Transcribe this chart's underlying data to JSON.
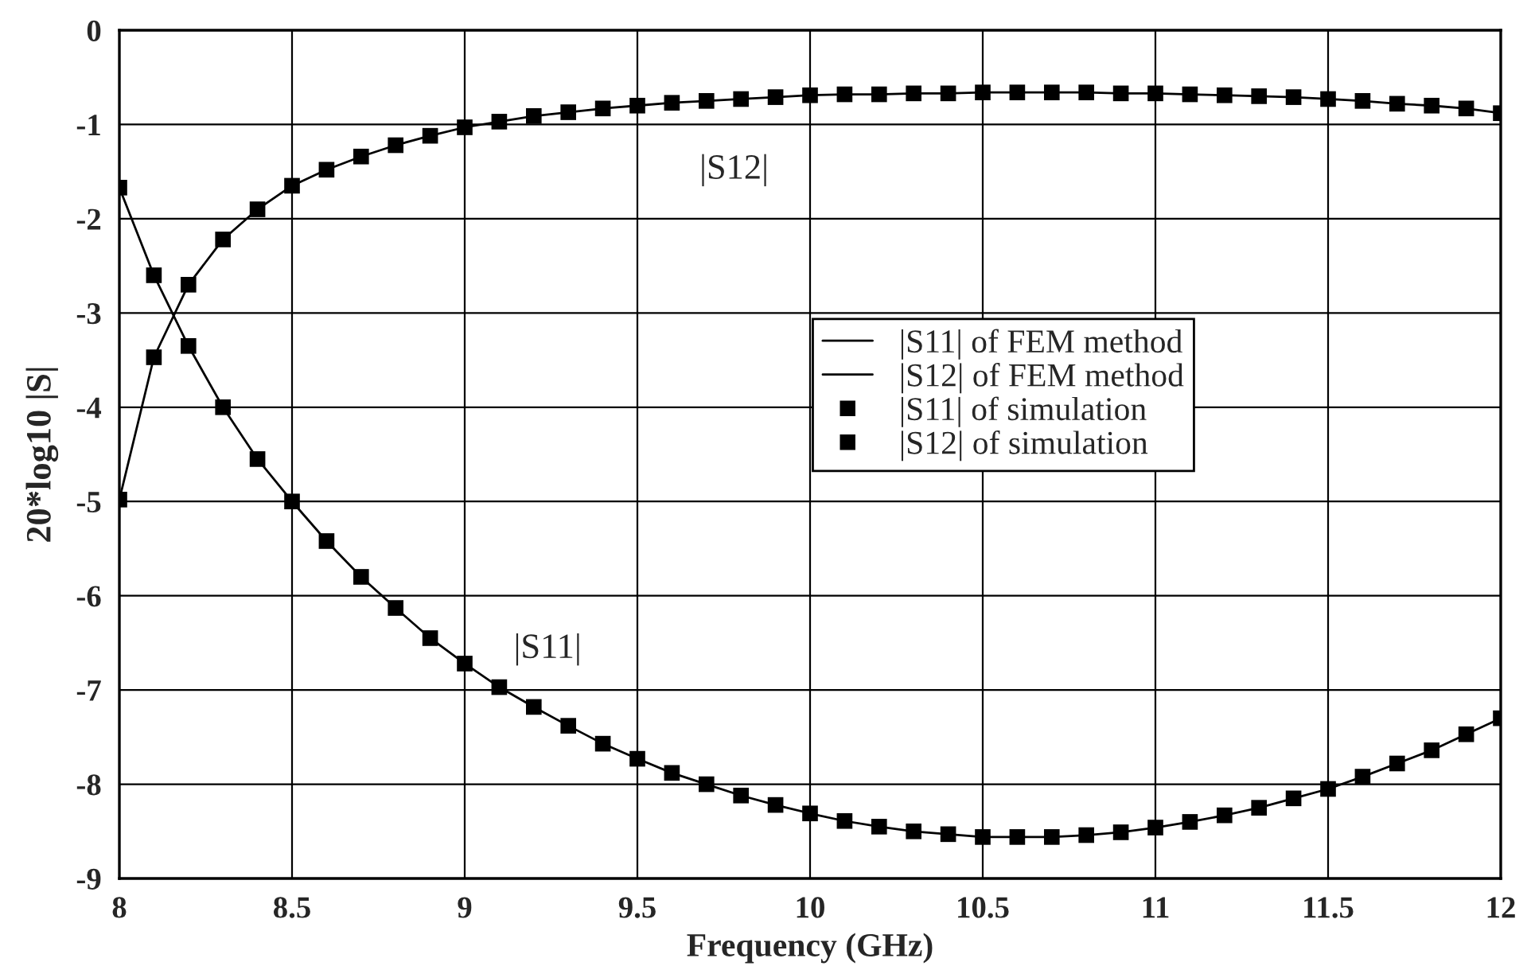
{
  "chart_data": {
    "type": "line",
    "xlabel": "Frequency (GHz)",
    "ylabel": "20*log10 |S|",
    "x": [
      8,
      8.1,
      8.2,
      8.3,
      8.4,
      8.5,
      8.6,
      8.7,
      8.8,
      8.9,
      9,
      9.1,
      9.2,
      9.3,
      9.4,
      9.5,
      9.6,
      9.7,
      9.8,
      9.9,
      10,
      10.1,
      10.2,
      10.3,
      10.4,
      10.5,
      10.6,
      10.7,
      10.8,
      10.9,
      11,
      11.1,
      11.2,
      11.3,
      11.4,
      11.5,
      11.6,
      11.7,
      11.8,
      11.9,
      12
    ],
    "series": [
      {
        "name": "|S11| of FEM method",
        "color": "#000000",
        "values": [
          -1.67,
          -2.6,
          -3.35,
          -4.0,
          -4.55,
          -5.0,
          -5.42,
          -5.8,
          -6.13,
          -6.45,
          -6.72,
          -6.97,
          -7.18,
          -7.38,
          -7.57,
          -7.73,
          -7.88,
          -8.0,
          -8.12,
          -8.22,
          -8.31,
          -8.39,
          -8.45,
          -8.5,
          -8.53,
          -8.56,
          -8.56,
          -8.56,
          -8.54,
          -8.51,
          -8.46,
          -8.4,
          -8.33,
          -8.25,
          -8.15,
          -8.05,
          -7.92,
          -7.78,
          -7.64,
          -7.47,
          -7.3
        ]
      },
      {
        "name": "|S12| of FEM method",
        "color": "#000000",
        "values": [
          -4.98,
          -3.47,
          -2.7,
          -2.22,
          -1.9,
          -1.65,
          -1.48,
          -1.34,
          -1.22,
          -1.12,
          -1.03,
          -0.97,
          -0.91,
          -0.87,
          -0.83,
          -0.8,
          -0.77,
          -0.75,
          -0.73,
          -0.71,
          -0.69,
          -0.68,
          -0.68,
          -0.67,
          -0.67,
          -0.66,
          -0.66,
          -0.66,
          -0.66,
          -0.67,
          -0.67,
          -0.68,
          -0.69,
          -0.7,
          -0.71,
          -0.73,
          -0.75,
          -0.78,
          -0.8,
          -0.83,
          -0.88
        ]
      },
      {
        "name": "|S11| of simulation",
        "type": "scatter",
        "marker": "square",
        "color": "#000000",
        "values": [
          -1.67,
          -2.6,
          -3.35,
          -4.0,
          -4.55,
          -5.0,
          -5.42,
          -5.8,
          -6.13,
          -6.45,
          -6.72,
          -6.97,
          -7.18,
          -7.38,
          -7.57,
          -7.73,
          -7.88,
          -8.0,
          -8.12,
          -8.22,
          -8.31,
          -8.39,
          -8.45,
          -8.5,
          -8.53,
          -8.56,
          -8.56,
          -8.56,
          -8.54,
          -8.51,
          -8.46,
          -8.4,
          -8.33,
          -8.25,
          -8.15,
          -8.05,
          -7.92,
          -7.78,
          -7.64,
          -7.47,
          -7.3
        ]
      },
      {
        "name": "|S12| of simulation",
        "type": "scatter",
        "marker": "square",
        "color": "#000000",
        "values": [
          -4.98,
          -3.47,
          -2.7,
          -2.22,
          -1.9,
          -1.65,
          -1.48,
          -1.34,
          -1.22,
          -1.12,
          -1.03,
          -0.97,
          -0.91,
          -0.87,
          -0.83,
          -0.8,
          -0.77,
          -0.75,
          -0.73,
          -0.71,
          -0.69,
          -0.68,
          -0.68,
          -0.67,
          -0.67,
          -0.66,
          -0.66,
          -0.66,
          -0.66,
          -0.67,
          -0.67,
          -0.68,
          -0.69,
          -0.7,
          -0.71,
          -0.73,
          -0.75,
          -0.78,
          -0.8,
          -0.83,
          -0.88
        ]
      }
    ],
    "annotations": [
      "|S12|",
      "|S11|"
    ],
    "xlim": [
      8,
      12
    ],
    "xticks": [
      8,
      8.5,
      9,
      9.5,
      10,
      10.5,
      11,
      11.5,
      12
    ],
    "ylim": [
      -9,
      0
    ],
    "yticks": [
      0,
      -1,
      -2,
      -3,
      -4,
      -5,
      -6,
      -7,
      -8,
      -9
    ],
    "grid": true,
    "legend": "right"
  }
}
